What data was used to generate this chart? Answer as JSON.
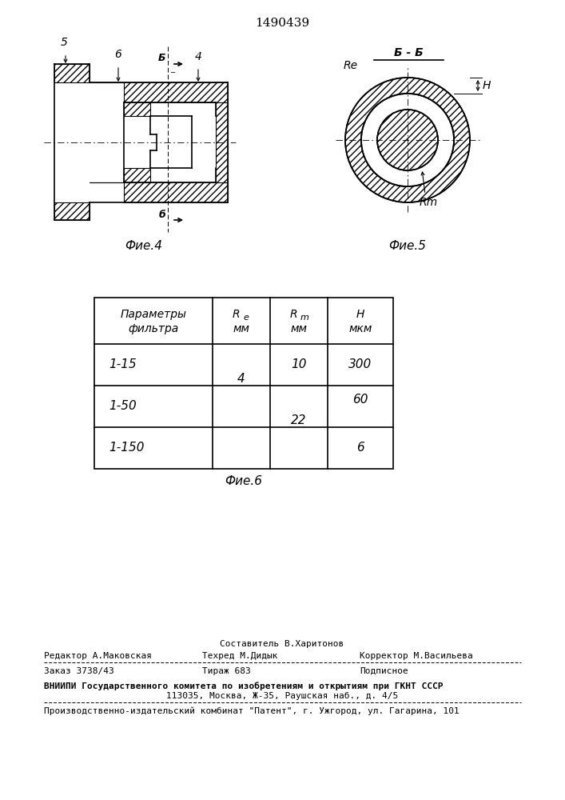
{
  "patent_number": "1490439",
  "bg_color": "#ffffff",
  "fig4_caption": "Фие.4",
  "fig5_caption": "Фие.5",
  "fig6_caption": "Фие.6",
  "footer": {
    "line1_center": "Составитель В.Харитонов",
    "line2_left": "Редактор А.Маковская",
    "line2_center": "Техред М.Дидык",
    "line2_right": "Корректор М.Васильева",
    "line3_left": "Заказ 3738/43",
    "line3_center": "Тираж 683",
    "line3_right": "Подписное",
    "line4": "ВНИИПИ Государственного комитета по изобретениям и открытиям при ГКНТ СССР",
    "line5": "113035, Москва, Ж-35, Раушская наб., д. 4/5",
    "line6": "Производственно-издательский комбинат \"Патент\", г. Ужгород, ул. Гагарина, 101"
  }
}
